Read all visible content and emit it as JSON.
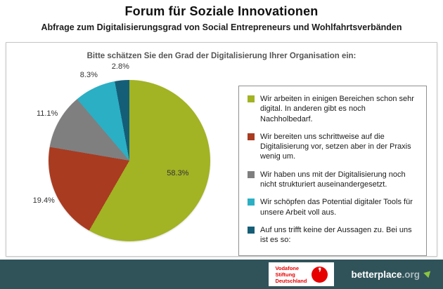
{
  "header": {
    "title": "Forum für Soziale Innovationen",
    "subtitle": "Abfrage zum Digitalisierungsgrad von Social Entrepreneurs und Wohlfahrtsverbänden"
  },
  "chart_data": {
    "type": "pie",
    "title": "Bitte schätzen Sie den Grad der Digitalisierung Ihrer Organisation ein:",
    "legend_position": "right",
    "start_angle_deg": 0,
    "direction": "clockwise",
    "slices": [
      {
        "label": "Wir arbeiten in einigen Bereichen schon sehr digital. In anderen gibt es noch Nachholbedarf.",
        "value": 58.3,
        "display": "58.3%",
        "color": "#a2b324"
      },
      {
        "label": "Wir bereiten uns schrittweise auf die Digitalisierung vor, setzen aber in der Praxis wenig um.",
        "value": 19.4,
        "display": "19.4%",
        "color": "#a93b21"
      },
      {
        "label": "Wir haben uns mit der Digitalisierung noch nicht strukturiert auseinandergesetzt.",
        "value": 11.1,
        "display": "11.1%",
        "color": "#7f7f7f"
      },
      {
        "label": "Wir schöpfen das Potential digitaler Tools für unsere Arbeit voll aus.",
        "value": 8.3,
        "display": "8.3%",
        "color": "#2bafc4"
      },
      {
        "label": "Auf uns trifft keine der Aussagen zu. Bei uns ist es so:",
        "value": 2.8,
        "display": "2.8%",
        "color": "#155e78"
      }
    ]
  },
  "footer": {
    "vodafone": {
      "line1": "Vodafone",
      "line2": "Stiftung",
      "line3": "Deutschland",
      "logo_glyph": "❜"
    },
    "betterplace": {
      "name": "betterplace",
      "tld": ".org"
    }
  }
}
